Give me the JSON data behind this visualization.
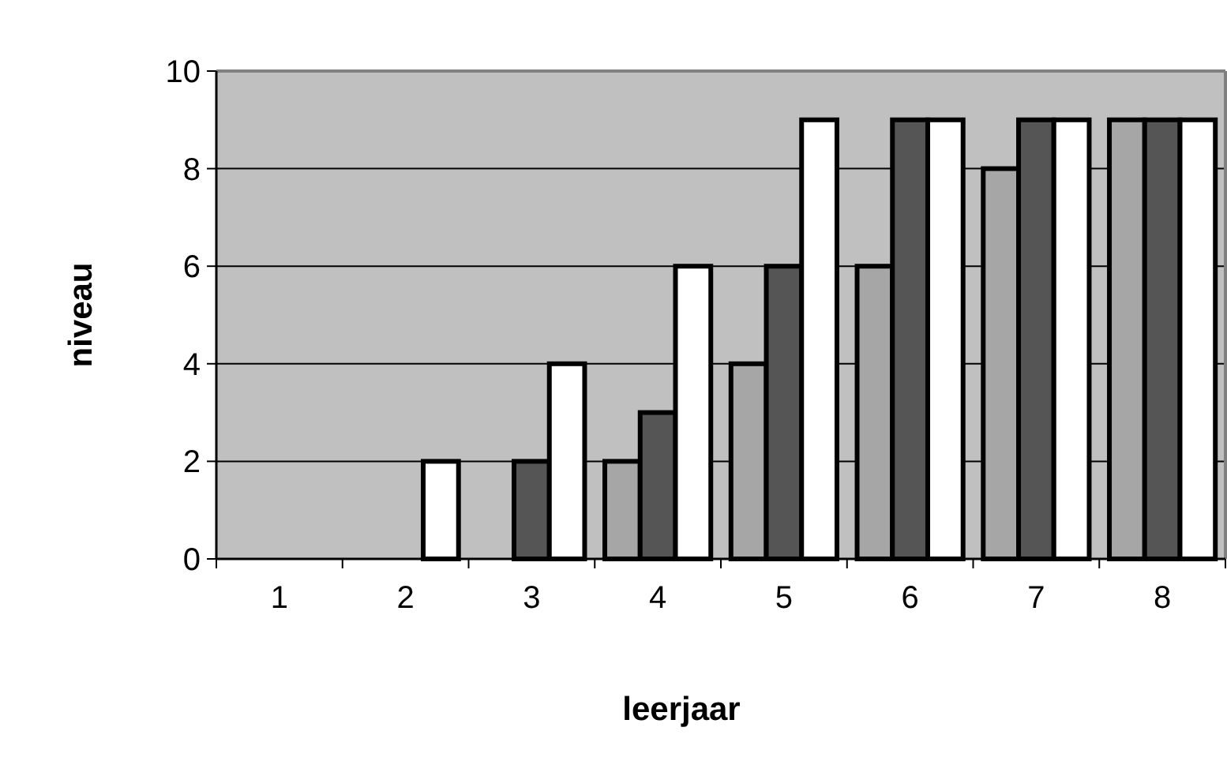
{
  "chart_data": {
    "type": "bar",
    "xlabel": "leerjaar",
    "ylabel": "niveau",
    "categories": [
      "1",
      "2",
      "3",
      "4",
      "5",
      "6",
      "7",
      "8"
    ],
    "series": [
      {
        "color": "#a6a6a6",
        "values": [
          0,
          0,
          0,
          2,
          4,
          6,
          8,
          9
        ]
      },
      {
        "color": "#555555",
        "values": [
          0,
          0,
          2,
          3,
          6,
          9,
          9,
          9
        ]
      },
      {
        "color": "#ffffff",
        "values": [
          0,
          2,
          4,
          6,
          9,
          9,
          9,
          9
        ]
      }
    ],
    "ylim": [
      0,
      10
    ],
    "yticks": [
      0,
      2,
      4,
      6,
      8,
      10
    ],
    "grid": "y"
  }
}
